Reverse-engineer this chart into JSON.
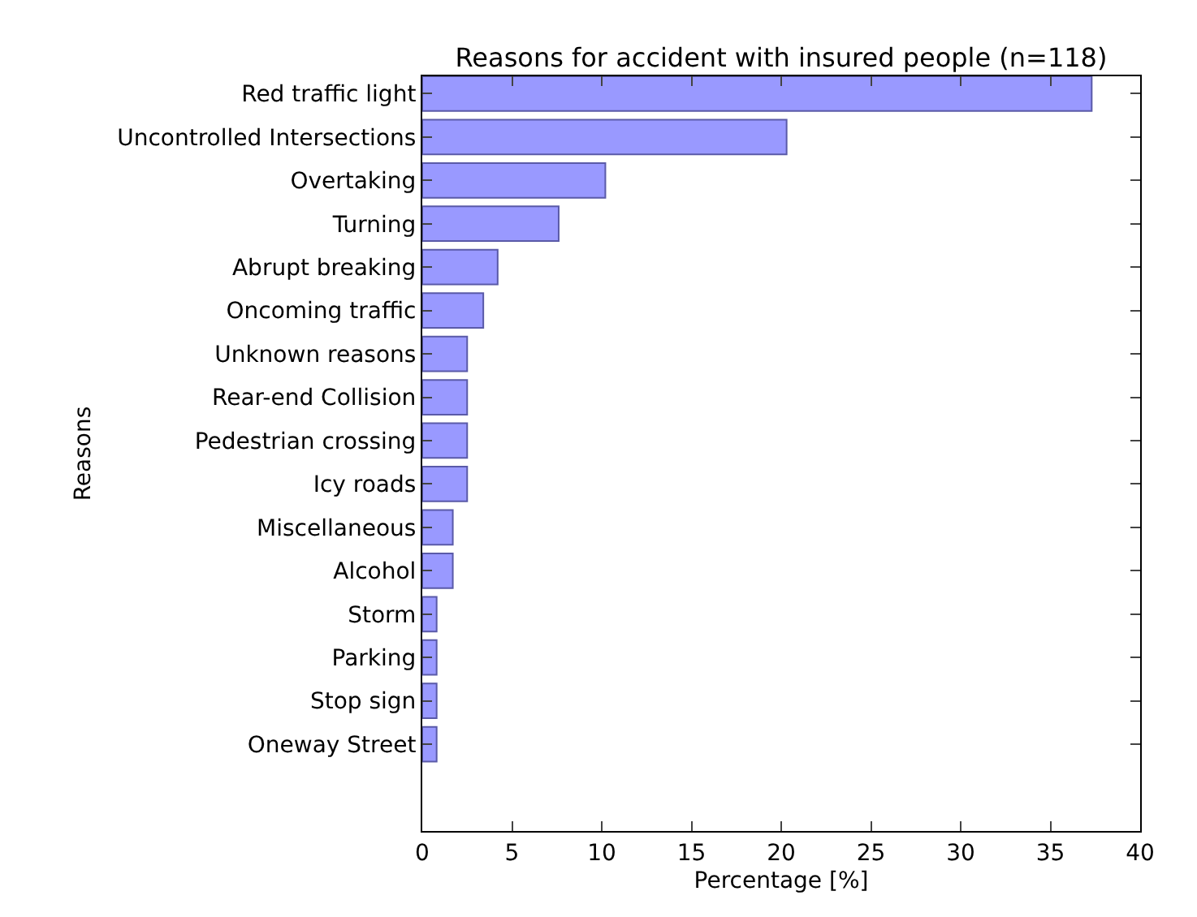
{
  "chart_data": {
    "type": "bar",
    "orientation": "horizontal",
    "title": "Reasons for accident with insured people (n=118)",
    "xlabel": "Percentage [%]",
    "ylabel": "Reasons",
    "categories": [
      "Red traffic light",
      "Uncontrolled Intersections",
      "Overtaking",
      "Turning",
      "Abrupt breaking",
      "Oncoming traffic",
      "Unknown reasons",
      "Rear-end Collision",
      "Pedestrian crossing",
      "Icy roads",
      "Miscellaneous",
      "Alcohol",
      "Storm",
      "Parking",
      "Stop sign",
      "Oneway Street"
    ],
    "values": [
      37.3,
      20.3,
      10.2,
      7.6,
      4.2,
      3.4,
      2.5,
      2.5,
      2.5,
      2.5,
      1.7,
      1.7,
      0.8,
      0.8,
      0.8,
      0.8
    ],
    "color": "#9999ff",
    "xlim": [
      0,
      40
    ],
    "xticks": [
      0,
      5,
      10,
      15,
      20,
      25,
      30,
      35,
      40
    ],
    "grid": false
  }
}
